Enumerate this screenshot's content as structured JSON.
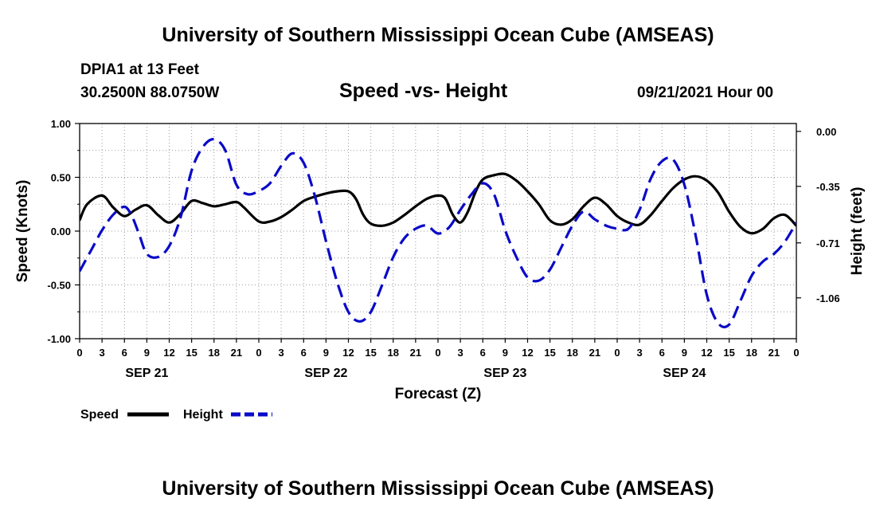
{
  "header": {
    "title_top": "University of Southern Mississippi Ocean Cube (AMSEAS)",
    "station": "DPIA1 at 13 Feet",
    "coords": "30.2500N  88.0750W",
    "chart_title": "Speed -vs- Height",
    "datetime": "09/21/2021 Hour 00",
    "title_bottom": "University of Southern Mississippi Ocean Cube (AMSEAS)"
  },
  "legend": {
    "speed_label": "Speed",
    "height_label": "Height"
  },
  "colors": {
    "speed": "#000000",
    "height": "#0a0ac8",
    "grid": "#9a9a9a"
  },
  "chart_data": {
    "type": "line",
    "title": "Speed -vs- Height",
    "xlabel": "Forecast (Z)",
    "ylabel": "Speed (Knots)",
    "y2label": "Height (feet)",
    "x_range_hours": [
      0,
      96
    ],
    "ylim": [
      -1.0,
      1.0
    ],
    "y2lim": [
      -1.32,
      0.05
    ],
    "yticks": [
      "1.00",
      "0.50",
      "0.00",
      "-0.50",
      "-1.00"
    ],
    "yticks_values": [
      1.0,
      0.5,
      0.0,
      -0.5,
      -1.0
    ],
    "y2ticks": [
      "0.00",
      "-0.35",
      "-0.71",
      "-1.06"
    ],
    "y2ticks_values": [
      0.0,
      -0.35,
      -0.71,
      -1.06
    ],
    "xtick_labels": [
      "0",
      "3",
      "6",
      "9",
      "12",
      "15",
      "18",
      "21",
      "0",
      "3",
      "6",
      "9",
      "12",
      "15",
      "18",
      "21",
      "0",
      "3",
      "6",
      "9",
      "12",
      "15",
      "18",
      "21",
      "0",
      "3",
      "6",
      "9",
      "12",
      "15",
      "18",
      "21",
      "0"
    ],
    "day_labels": [
      {
        "label": "SEP 21",
        "hour": 9
      },
      {
        "label": "SEP 22",
        "hour": 33
      },
      {
        "label": "SEP 23",
        "hour": 57
      },
      {
        "label": "SEP 24",
        "hour": 81
      }
    ],
    "series": [
      {
        "name": "Speed",
        "axis": "left",
        "style": "solid",
        "x": [
          0,
          1,
          3,
          4.5,
          6,
          7.5,
          9,
          10.5,
          12,
          13.5,
          15,
          16.5,
          18,
          19.5,
          21,
          22,
          24,
          25.5,
          27,
          28.5,
          30,
          31.5,
          33,
          34.5,
          36,
          37,
          38,
          39,
          40.5,
          42,
          43.5,
          45,
          46.5,
          48,
          49,
          50,
          51,
          52,
          53,
          54,
          55.5,
          57,
          58.5,
          60,
          61.5,
          63,
          64.5,
          66,
          67.5,
          69,
          70.5,
          72,
          73.5,
          75,
          76.5,
          78,
          79.5,
          81,
          82.5,
          84,
          85.5,
          87,
          88.5,
          90,
          91.5,
          93,
          94.5,
          96
        ],
        "values": [
          0.1,
          0.25,
          0.33,
          0.22,
          0.14,
          0.2,
          0.24,
          0.15,
          0.08,
          0.16,
          0.28,
          0.26,
          0.23,
          0.25,
          0.27,
          0.22,
          0.09,
          0.09,
          0.13,
          0.2,
          0.28,
          0.32,
          0.35,
          0.37,
          0.37,
          0.3,
          0.15,
          0.07,
          0.05,
          0.08,
          0.15,
          0.23,
          0.3,
          0.33,
          0.3,
          0.15,
          0.08,
          0.18,
          0.36,
          0.48,
          0.52,
          0.53,
          0.47,
          0.37,
          0.25,
          0.1,
          0.06,
          0.11,
          0.23,
          0.31,
          0.25,
          0.14,
          0.08,
          0.06,
          0.15,
          0.28,
          0.4,
          0.48,
          0.51,
          0.47,
          0.36,
          0.18,
          0.04,
          -0.02,
          0.02,
          0.12,
          0.15,
          0.05
        ]
      },
      {
        "name": "Height",
        "axis": "right",
        "style": "dashed",
        "x": [
          0,
          1.5,
          3,
          4.5,
          6,
          7,
          8,
          9,
          10.5,
          12,
          13.5,
          15,
          16.5,
          18,
          19.5,
          21,
          22.5,
          24,
          25.5,
          27,
          28.5,
          30,
          31.5,
          33,
          34.5,
          36,
          37.5,
          39,
          40.5,
          42,
          43.5,
          45,
          46.5,
          48,
          49.5,
          51,
          52.5,
          54,
          55.5,
          57,
          58.5,
          60,
          61.5,
          63,
          64.5,
          66,
          67.5,
          69,
          70.5,
          72,
          73.5,
          75,
          76.5,
          78,
          79.5,
          81,
          82.5,
          84,
          85.5,
          87,
          88.5,
          90,
          91.5,
          93,
          94.5,
          96
        ],
        "values": [
          -0.89,
          -0.76,
          -0.63,
          -0.53,
          -0.48,
          -0.54,
          -0.66,
          -0.78,
          -0.8,
          -0.73,
          -0.55,
          -0.25,
          -0.1,
          -0.05,
          -0.12,
          -0.34,
          -0.4,
          -0.38,
          -0.33,
          -0.22,
          -0.14,
          -0.2,
          -0.41,
          -0.7,
          -0.96,
          -1.15,
          -1.21,
          -1.15,
          -0.98,
          -0.8,
          -0.68,
          -0.62,
          -0.6,
          -0.65,
          -0.61,
          -0.5,
          -0.4,
          -0.33,
          -0.4,
          -0.63,
          -0.8,
          -0.93,
          -0.95,
          -0.88,
          -0.74,
          -0.6,
          -0.51,
          -0.56,
          -0.6,
          -0.62,
          -0.62,
          -0.5,
          -0.3,
          -0.19,
          -0.18,
          -0.34,
          -0.66,
          -1.04,
          -1.22,
          -1.23,
          -1.08,
          -0.92,
          -0.83,
          -0.78,
          -0.7,
          -0.58
        ]
      }
    ]
  }
}
